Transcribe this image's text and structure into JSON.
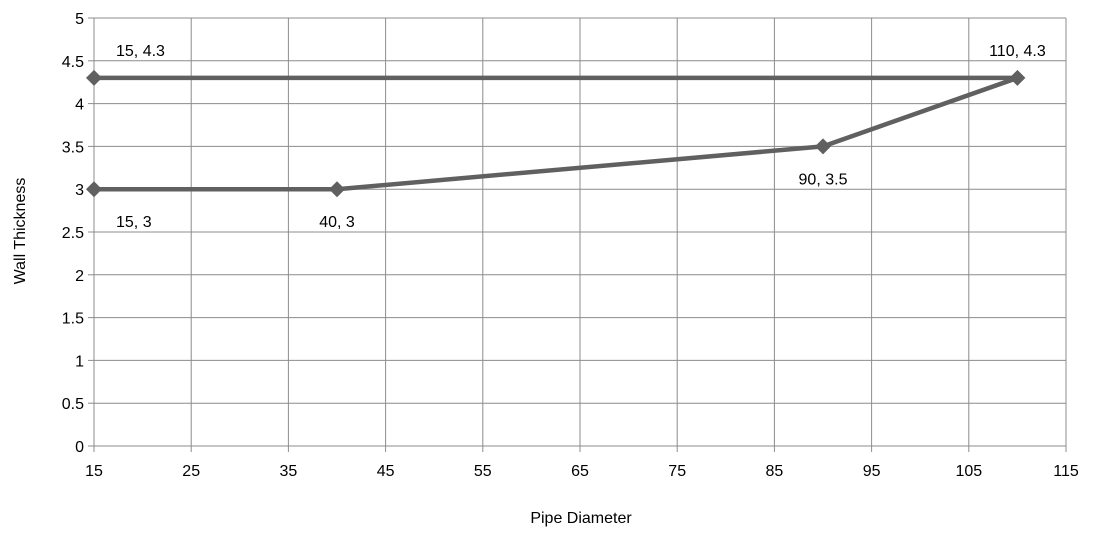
{
  "chart_data": {
    "type": "line",
    "xlabel": "Pipe Diameter",
    "ylabel": "Wall Thickness",
    "xlim": [
      15,
      115
    ],
    "ylim": [
      0,
      5
    ],
    "x_ticks": [
      15,
      25,
      35,
      45,
      55,
      65,
      75,
      85,
      95,
      105,
      115
    ],
    "y_ticks": [
      0,
      0.5,
      1,
      1.5,
      2,
      2.5,
      3,
      3.5,
      4,
      4.5,
      5
    ],
    "grid": true,
    "legend": "none",
    "series": [
      {
        "x": [
          15,
          40,
          90,
          110,
          15
        ],
        "y": [
          3,
          3,
          3.5,
          4.3,
          4.3
        ],
        "marker": "diamond",
        "color": "#606060"
      }
    ],
    "data_labels": [
      {
        "text": "15, 3",
        "x": 15,
        "y": 3,
        "position": "below-right"
      },
      {
        "text": "40, 3",
        "x": 40,
        "y": 3,
        "position": "below"
      },
      {
        "text": "90, 3.5",
        "x": 90,
        "y": 3.5,
        "position": "below"
      },
      {
        "text": "110, 4.3",
        "x": 110,
        "y": 4.3,
        "position": "above"
      },
      {
        "text": "15, 4.3",
        "x": 15,
        "y": 4.3,
        "position": "above-right"
      }
    ],
    "colors": {
      "series": "#606060",
      "grid": "#8c8c8c",
      "axis": "#8c8c8c",
      "text": "#000000"
    }
  }
}
